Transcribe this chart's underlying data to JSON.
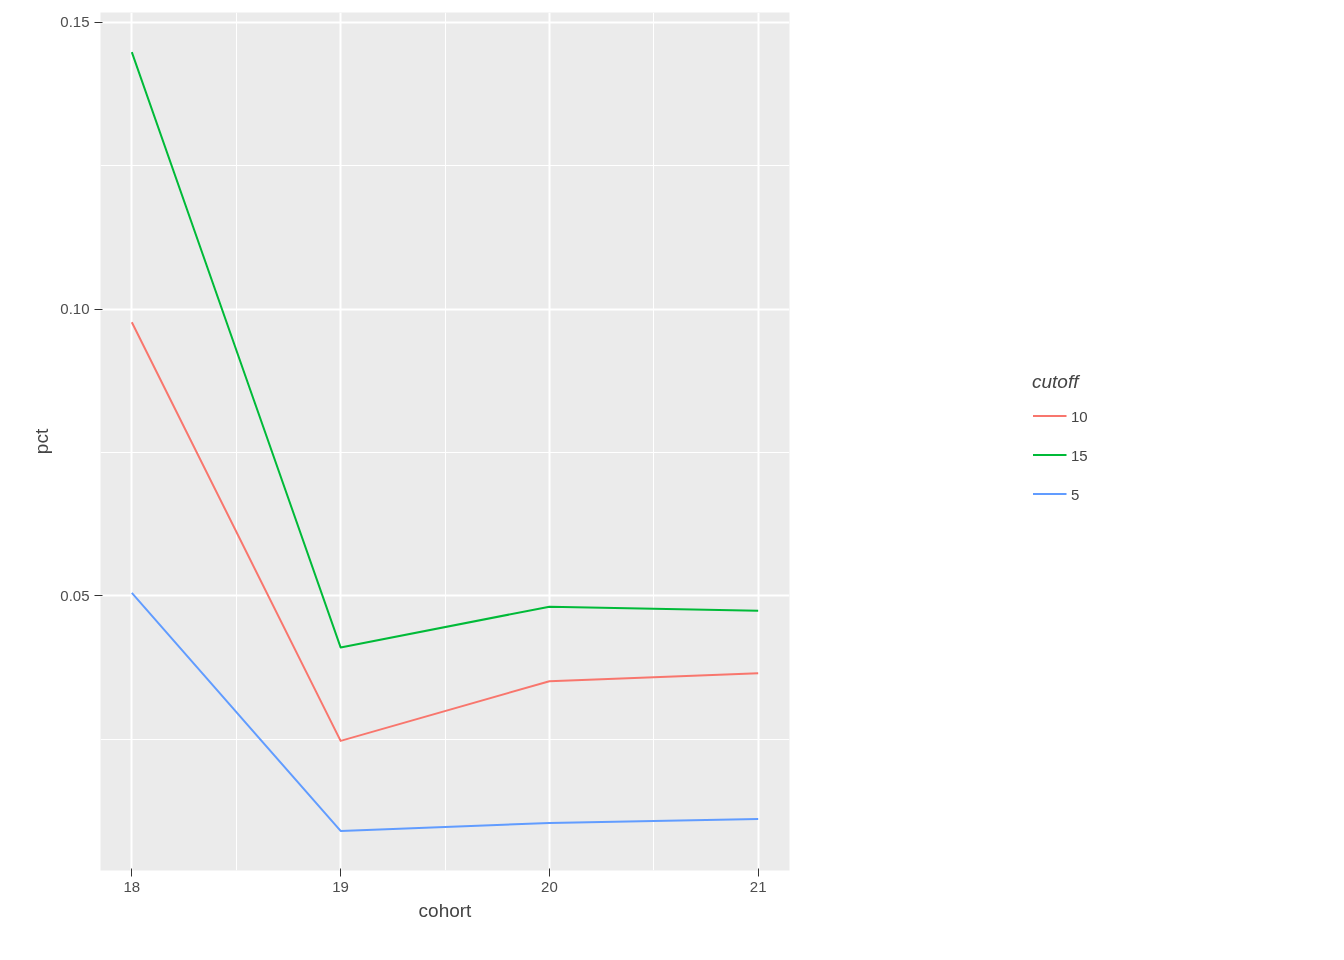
{
  "chart_data": {
    "type": "line",
    "xlabel": "cohort",
    "ylabel": "pct",
    "legend_title": "cutoff",
    "x": [
      18,
      19,
      20,
      21
    ],
    "series": [
      {
        "name": "10",
        "color": "#f8766d",
        "values": [
          0.0977,
          0.0247,
          0.0351,
          0.0365
        ]
      },
      {
        "name": "15",
        "color": "#00ba38",
        "values": [
          0.1448,
          0.041,
          0.0481,
          0.0474
        ]
      },
      {
        "name": "5",
        "color": "#619cff",
        "values": [
          0.0505,
          0.009,
          0.0104,
          0.0111
        ]
      }
    ],
    "xlim": [
      17.85,
      21.15
    ],
    "xticks": [
      18,
      19,
      20,
      21
    ],
    "ylim": [
      0.0021,
      0.1517
    ],
    "yticks": [
      {
        "value": 0.05,
        "label": "0.05"
      },
      {
        "value": 0.1,
        "label": "0.10"
      },
      {
        "value": 0.15,
        "label": "0.15"
      }
    ],
    "grid": true,
    "legend": "right",
    "marker": "none",
    "line_style": "solid"
  }
}
